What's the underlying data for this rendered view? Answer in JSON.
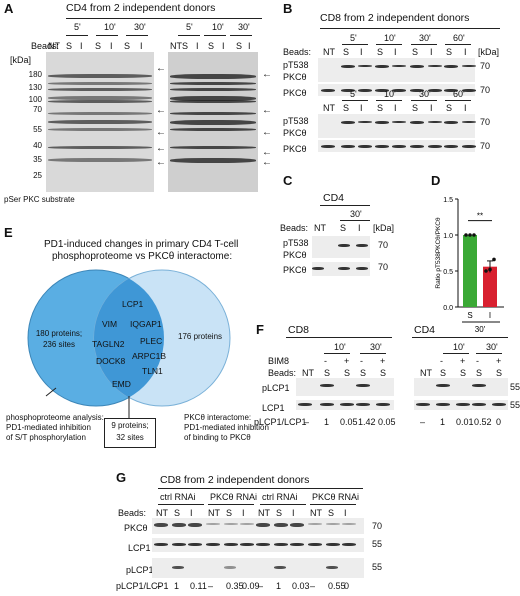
{
  "panelA": {
    "letter": "A",
    "title": "CD4 from 2 independent donors",
    "beads_label": "Beads:",
    "kda_label": "[kDa]",
    "time_labels": [
      "5'",
      "10'",
      "30'",
      "5'",
      "10'",
      "30'"
    ],
    "lanes": [
      "NT",
      "S",
      "I",
      "S",
      "I",
      "S",
      "I",
      "NT",
      "S",
      "I",
      "S",
      "I",
      "S",
      "I"
    ],
    "markers": [
      "180",
      "130",
      "100",
      "70",
      "55",
      "40",
      "35",
      "25"
    ],
    "caption": "pSer PKC substrate"
  },
  "panelB": {
    "letter": "B",
    "title": "CD8  from 2 independent donors",
    "beads_label": "Beads:",
    "kda_label": "[kDa]",
    "time_labels": [
      "5'",
      "10'",
      "30'",
      "60'"
    ],
    "lanes": [
      "NT",
      "S",
      "I",
      "S",
      "I",
      "S",
      "I",
      "S",
      "I"
    ],
    "row1": "pT538",
    "row2": "PKCθ",
    "row3": "PKCθ",
    "marker": "70"
  },
  "panelC": {
    "letter": "C",
    "title": "CD4",
    "time_label": "30'",
    "beads_label": "Beads:",
    "lanes": [
      "NT",
      "S",
      "I"
    ],
    "kda_label": "[kDa]",
    "row1": "pT538",
    "row2": "PKCθ",
    "row3": "PKCθ",
    "marker": "70"
  },
  "panelD": {
    "letter": "D",
    "ylabel": "Ratio pT538PKCθ/PKCθ",
    "significance": "**",
    "xlabel": "30'"
  },
  "chart_data": {
    "type": "bar",
    "categories": [
      "S",
      "I"
    ],
    "values": [
      1.0,
      0.56
    ],
    "errors": [
      0.0,
      0.08
    ],
    "points": [
      [
        1.0,
        1.0,
        1.0
      ],
      [
        0.5,
        0.52,
        0.66
      ]
    ],
    "colors": [
      "#3aa935",
      "#d8202f"
    ],
    "ylim": [
      0,
      1.5
    ],
    "yticks": [
      "0.0",
      "0.5",
      "1.0",
      "1.5"
    ],
    "ylabel": "Ratio pT538PKCθ/PKCθ",
    "xlabel": "30'"
  },
  "panelE": {
    "letter": "E",
    "title_line1": "PD1-induced changes in primary CD4 T-cell",
    "title_line2": "phosphoproteome vs PKCθ interactome:",
    "left_count_line1": "180 proteins;",
    "left_count_line2": "236 sites",
    "right_count": "176 proteins",
    "overlap_proteins": [
      "LCP1",
      "VIM",
      "IQGAP1",
      "PLEC",
      "TAGLN2",
      "ARPC1B",
      "DOCK8",
      "TLN1",
      "EMD"
    ],
    "left_caption": [
      "phosphoproteome analysis:",
      "PD1-mediated inhibition",
      "of S/T phosphorylation"
    ],
    "right_caption": [
      "PKCθ interactome:",
      "PD1-mediated inhibition",
      "of binding to PKCθ"
    ],
    "box_line1": "9 proteins;",
    "box_line2": "32 sites",
    "colors": {
      "left": "#5aaee3",
      "right": "#c9e3f6",
      "overlap": "#3f97d6"
    }
  },
  "panelF": {
    "letter": "F",
    "cd8_label": "CD8",
    "cd4_label": "CD4",
    "bim8_label": "BIM8",
    "beads_label": "Beads:",
    "time_labels": [
      "10'",
      "30'",
      "10'",
      "30'"
    ],
    "bim8_row": [
      "-",
      "+",
      "-",
      "+",
      "-",
      "+",
      "-",
      "+"
    ],
    "beads_row": [
      "NT",
      "S",
      "S",
      "S",
      "S",
      "NT",
      "S",
      "S",
      "S",
      "S"
    ],
    "row1": "pLCP1",
    "row2": "LCP1",
    "ratio_label": "pLCP1/LCP1",
    "ratios": [
      "–",
      "1",
      "0.05",
      "1.42",
      "0.05",
      "–",
      "1",
      "0.01",
      "0.52",
      "0"
    ],
    "marker1": "55",
    "marker2": "55"
  },
  "panelG": {
    "letter": "G",
    "title": "CD8 from 2 independent donors",
    "groups": [
      "ctrl RNAi",
      "PKCθ RNAi",
      "ctrl RNAi",
      "PKCθ RNAi"
    ],
    "beads_label": "Beads:",
    "lanes": [
      "NT",
      "S",
      "I",
      "NT",
      "S",
      "I",
      "NT",
      "S",
      "I",
      "NT",
      "S",
      "I"
    ],
    "row1": "PKCθ",
    "row2": "LCP1",
    "row3": "pLCP1",
    "ratio_label": "pLCP1/LCP1",
    "ratios": [
      "–",
      "1",
      "0.11",
      "–",
      "0.35",
      "0.09",
      "–",
      "1",
      "0.03",
      "–",
      "0.55",
      "0"
    ],
    "markers": [
      "70",
      "55",
      "55"
    ]
  }
}
